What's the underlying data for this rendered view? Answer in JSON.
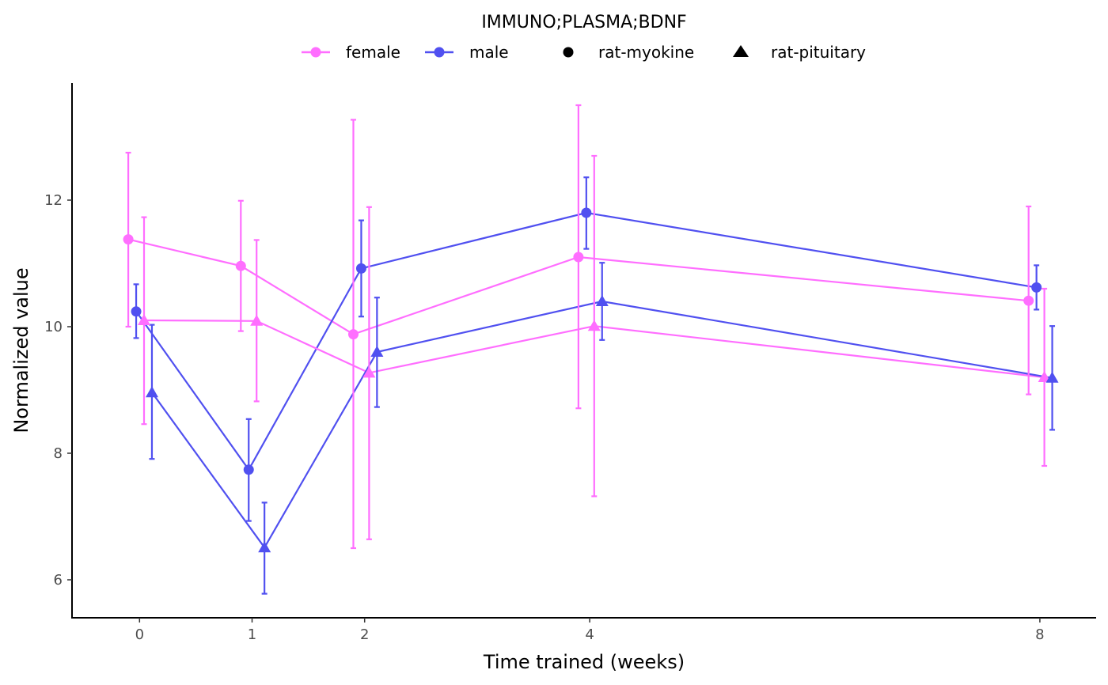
{
  "chart_data": {
    "type": "line",
    "title": "",
    "xlabel": "Time trained (weeks)",
    "ylabel": "Normalized value",
    "x_ticks": [
      0,
      1,
      2,
      4,
      8
    ],
    "y_ticks": [
      6,
      8,
      10,
      12
    ],
    "xlim": [
      -0.6,
      8.5
    ],
    "ylim": [
      5.4,
      13.85
    ],
    "grid": false,
    "legend": {
      "position": "top",
      "title": "IMMUNO;PLASMA;BDNF",
      "color_entries": [
        {
          "label": "female",
          "color": "#ff6eff"
        },
        {
          "label": "male",
          "color": "#5050f0"
        }
      ],
      "shape_entries": [
        {
          "label": "rat-myokine",
          "shape": "circle"
        },
        {
          "label": "rat-pituitary",
          "shape": "triangle"
        }
      ]
    },
    "series": [
      {
        "sex": "female",
        "assay": "rat-myokine",
        "color": "#ff6eff",
        "shape": "circle",
        "x": [
          0,
          1,
          2,
          4,
          8
        ],
        "y": [
          11.38,
          10.96,
          9.88,
          11.1,
          10.41
        ],
        "err_low": [
          10.0,
          9.93,
          6.5,
          8.71,
          8.93
        ],
        "err_high": [
          12.75,
          11.99,
          13.27,
          13.5,
          11.9
        ]
      },
      {
        "sex": "male",
        "assay": "rat-myokine",
        "color": "#5050f0",
        "shape": "circle",
        "x": [
          0,
          1,
          2,
          4,
          8
        ],
        "y": [
          10.24,
          7.74,
          10.92,
          11.8,
          10.62
        ],
        "err_low": [
          9.82,
          6.93,
          10.16,
          11.23,
          10.27
        ],
        "err_high": [
          10.67,
          8.54,
          11.68,
          12.36,
          10.97
        ]
      },
      {
        "sex": "female",
        "assay": "rat-pituitary",
        "color": "#ff6eff",
        "shape": "triangle",
        "x": [
          0,
          1,
          2,
          4,
          8
        ],
        "y": [
          10.1,
          10.09,
          9.27,
          10.01,
          9.2
        ],
        "err_low": [
          8.46,
          8.82,
          6.64,
          7.32,
          7.8
        ],
        "err_high": [
          11.73,
          11.37,
          11.89,
          12.7,
          10.6
        ]
      },
      {
        "sex": "male",
        "assay": "rat-pituitary",
        "color": "#5050f0",
        "shape": "triangle",
        "x": [
          0,
          1,
          2,
          4,
          8
        ],
        "y": [
          8.96,
          6.51,
          9.6,
          10.4,
          9.19
        ],
        "err_low": [
          7.91,
          5.78,
          8.73,
          9.79,
          8.37
        ],
        "err_high": [
          10.03,
          7.22,
          10.46,
          11.01,
          10.01
        ]
      }
    ]
  }
}
